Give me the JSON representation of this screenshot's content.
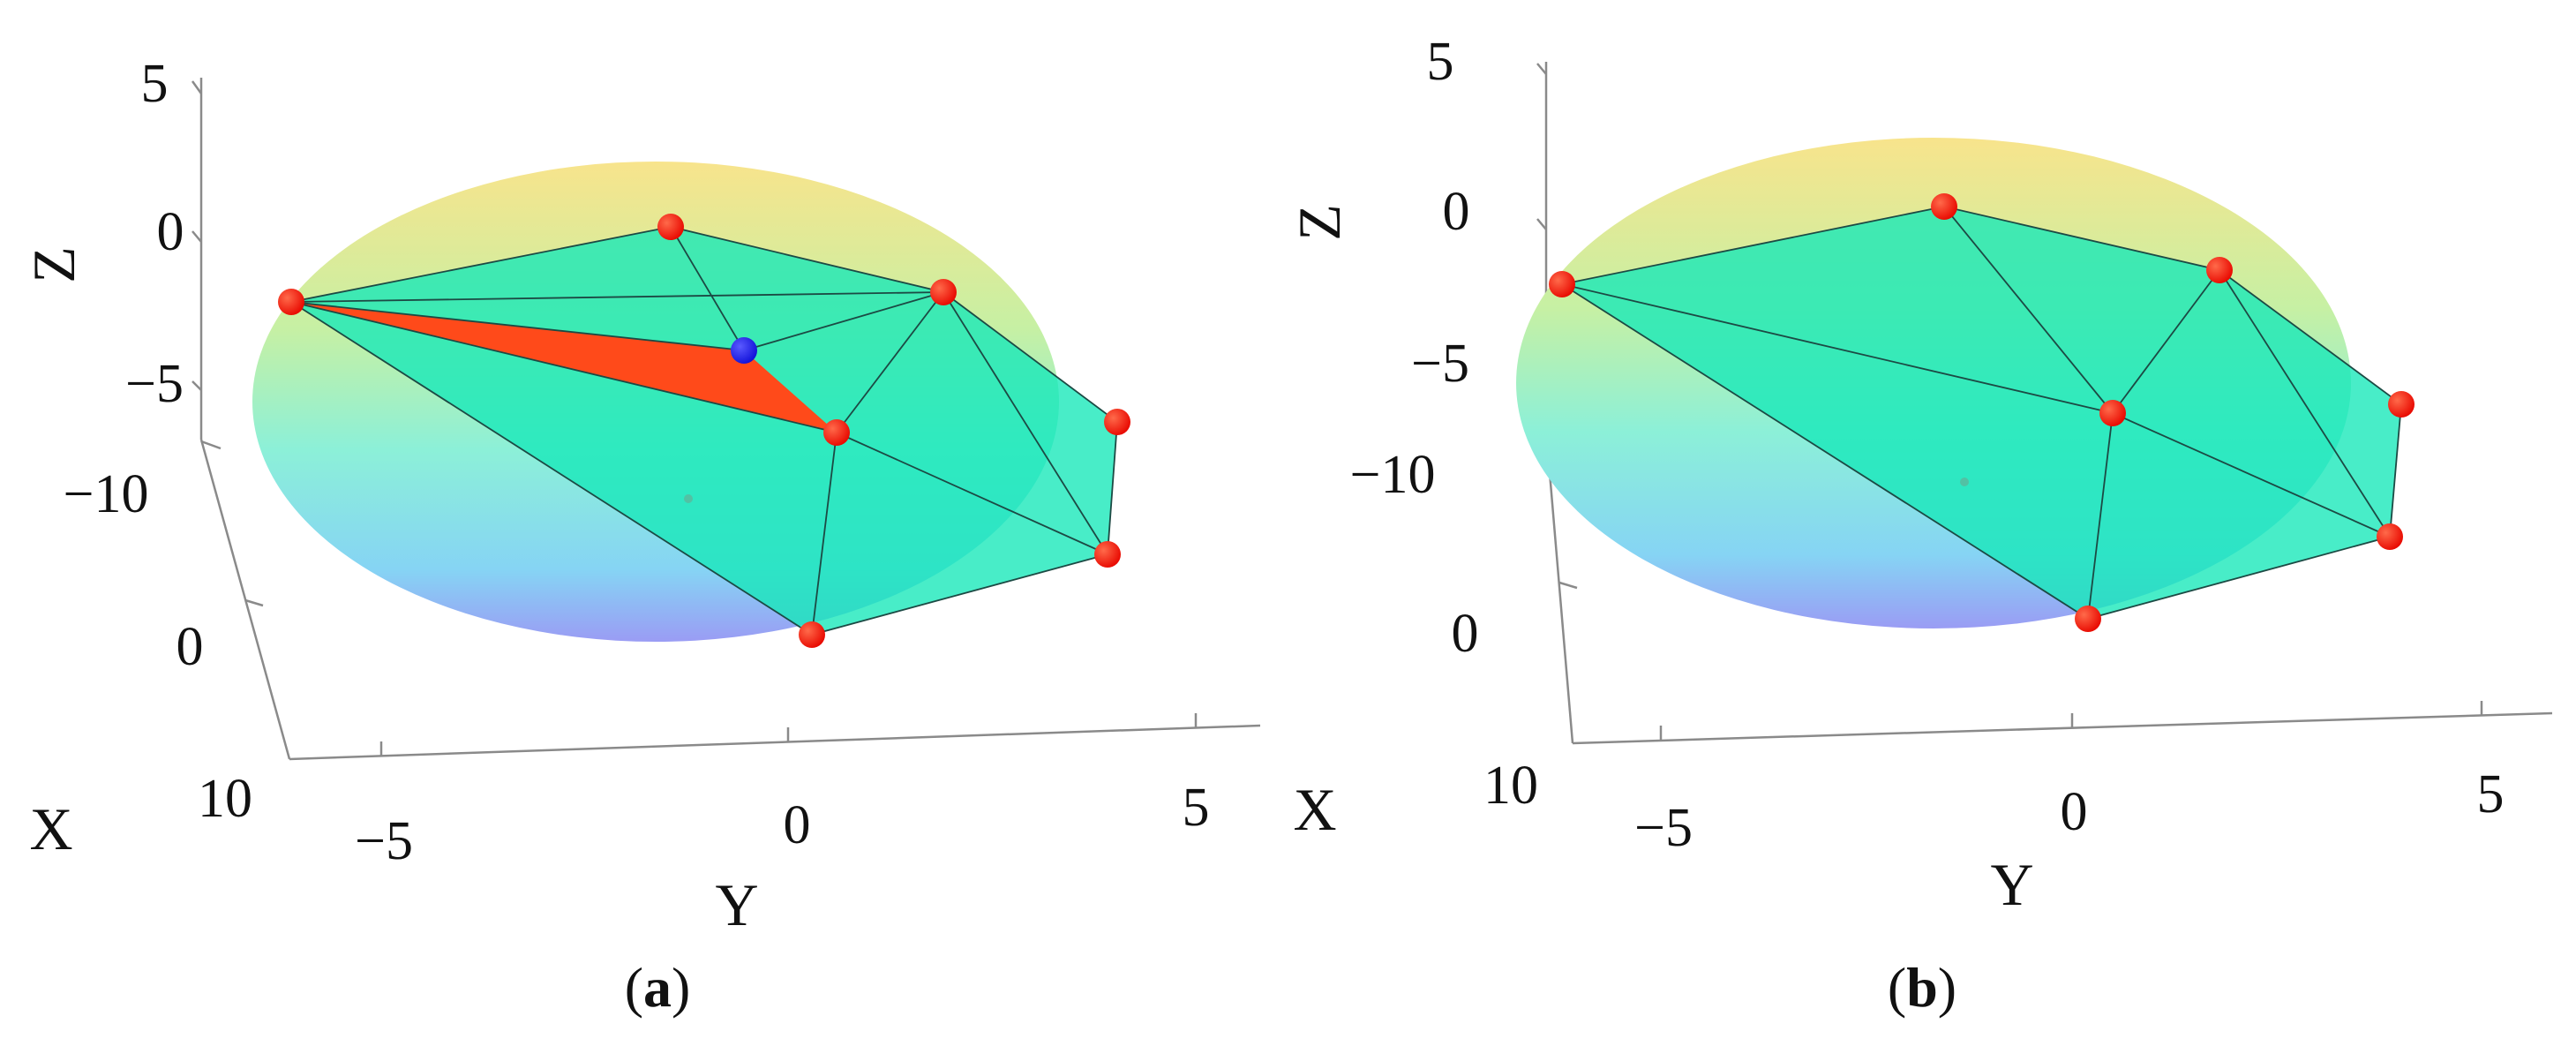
{
  "panels": [
    {
      "id": "a",
      "caption_open": "(",
      "caption_label": "a",
      "caption_close": ")",
      "axis_labels": {
        "x": "X",
        "y": "Y",
        "z": "Z"
      },
      "z_ticks": [
        "5",
        "0",
        "−5",
        "−10"
      ],
      "x_ticks": [
        "0",
        "10"
      ],
      "y_ticks": [
        "−5",
        "0",
        "5"
      ],
      "highlight_color": "#ff4a1a",
      "query_point_color": "#1a1aff"
    },
    {
      "id": "b",
      "caption_open": "(",
      "caption_label": "b",
      "caption_close": ")",
      "axis_labels": {
        "x": "X",
        "y": "Y",
        "z": "Z"
      },
      "z_ticks": [
        "5",
        "0",
        "−5",
        "−10"
      ],
      "x_ticks": [
        "0",
        "10"
      ],
      "y_ticks": [
        "−5",
        "0",
        "5"
      ]
    }
  ],
  "colors": {
    "vertex": "#ff1a00",
    "mesh_fill": "#14e8b8",
    "sphere_top": "#f6e08a",
    "sphere_mid": "#b8f0a0",
    "sphere_bottom": "#8a9cf4"
  }
}
